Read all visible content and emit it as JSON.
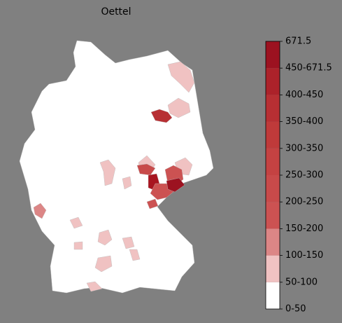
{
  "title": "Oettel",
  "colorbar": {
    "labels": [
      "0-50",
      "50-100",
      "100-150",
      "150-200",
      "200-250",
      "250-300",
      "300-350",
      "350-400",
      "400-450",
      "450-671.5",
      "671.5"
    ],
    "colors": [
      "#ffffff",
      "#f0c2c2",
      "#dc8686",
      "#cc5252",
      "#c84a4a",
      "#c44242",
      "#bf3a3a",
      "#b72f33",
      "#ac222a",
      "#9c1220"
    ]
  }
}
